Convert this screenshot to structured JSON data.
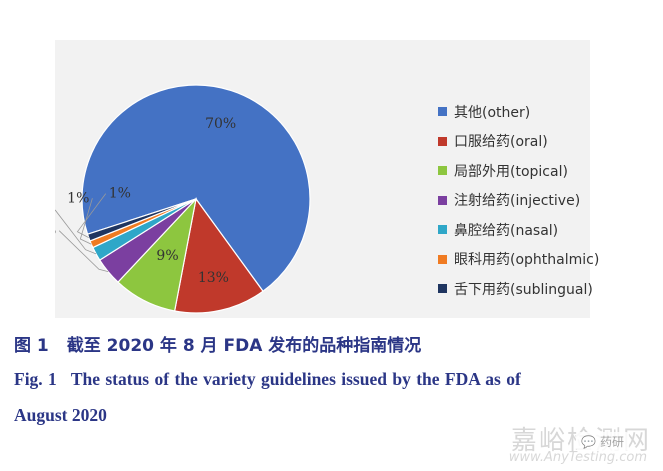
{
  "chart_data": {
    "type": "pie",
    "slices": [
      {
        "label": "其他(other)",
        "value": 70,
        "display": "70%",
        "color": "#4472c4"
      },
      {
        "label": "口服给药(oral)",
        "value": 13,
        "display": "13%",
        "color": "#c0392b"
      },
      {
        "label": "局部外用(topical)",
        "value": 9,
        "display": "9%",
        "color": "#8dc63f"
      },
      {
        "label": "注射给药(injective)",
        "value": 4,
        "display": "4%",
        "color": "#7b3fa0"
      },
      {
        "label": "鼻腔给药(nasal)",
        "value": 2,
        "display": "2%",
        "color": "#2fa7c8"
      },
      {
        "label": "眼科用药(ophthalmic)",
        "value": 1,
        "display": "1%",
        "color": "#f07b22"
      },
      {
        "label": "舌下用药(sublingual)",
        "value": 1,
        "display": "1%",
        "color": "#1f3560"
      }
    ],
    "legend_position": "right"
  },
  "caption": {
    "cn_label": "图 1",
    "cn_text": "截至 2020 年 8 月 FDA 发布的品种指南情况",
    "en_label": "Fig. 1",
    "en_text_line1": "The status of the variety guidelines issued by the FDA as of",
    "en_text_line2": "August 2020"
  },
  "watermark": {
    "cn": "嘉峪检测网",
    "en": "www.AnyTesting.com",
    "badge": "药研"
  }
}
